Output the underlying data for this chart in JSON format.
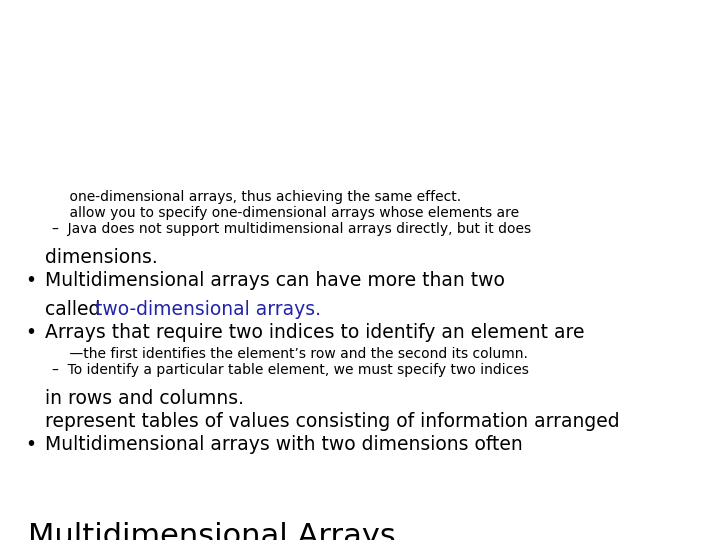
{
  "background_color": "#ffffff",
  "title": "Multidimensional Arrays",
  "title_fontsize": 22,
  "title_color": "#000000",
  "bullet_color": "#000000",
  "link_color": "#2222aa",
  "body_fontsize": 13.5,
  "sub_fontsize": 10.0,
  "bullet1_line1": "Multidimensional arrays with two dimensions often",
  "bullet1_line2": "represent tables of values consisting of information arranged",
  "bullet1_line3": "in rows and columns.",
  "sub1_line1": "–  To identify a particular table element, we must specify two indices",
  "sub1_line2": "    —the first identifies the element’s row and the second its column.",
  "bullet2_line1": "Arrays that require two indices to identify an element are",
  "bullet2_line2_before": "called ",
  "bullet2_line2_link": "two-dimensional arrays.",
  "bullet3_line1": "Multidimensional arrays can have more than two",
  "bullet3_line2": "dimensions.",
  "sub2_line1": "–  Java does not support multidimensional arrays directly, but it does",
  "sub2_line2": "    allow you to specify one-dimensional arrays whose elements are",
  "sub2_line3": "    one-dimensional arrays, thus achieving the same effect."
}
